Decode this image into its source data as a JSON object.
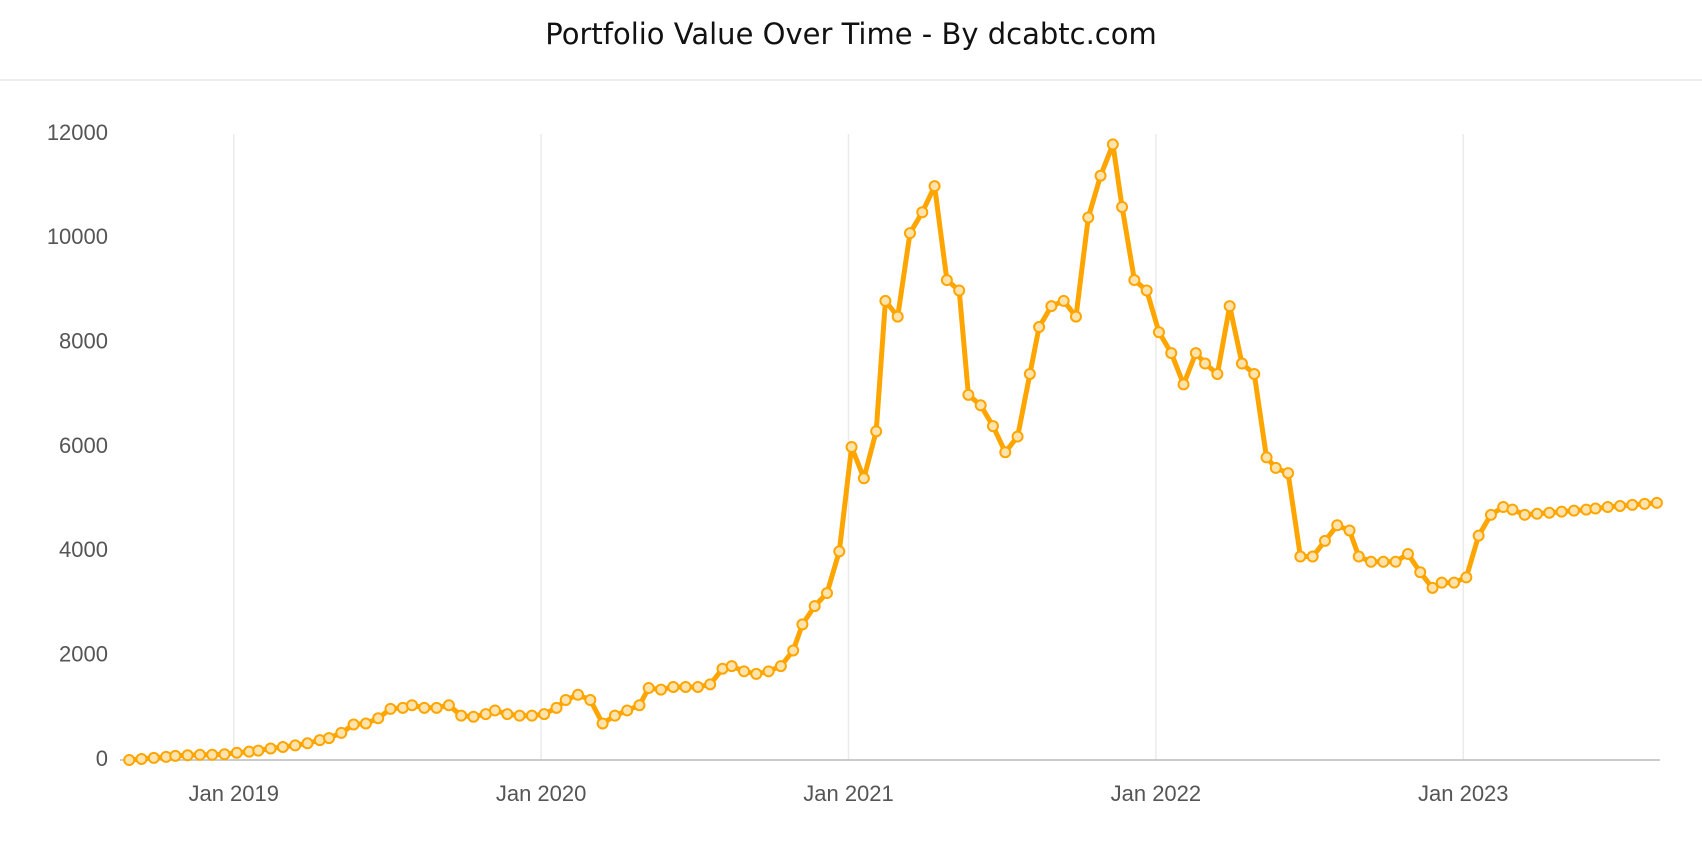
{
  "chart_data": {
    "type": "line",
    "title": "Portfolio Value Over Time - By dcabtc.com",
    "x": [
      2018.66,
      2018.7,
      2018.74,
      2018.78,
      2018.81,
      2018.85,
      2018.89,
      2018.93,
      2018.97,
      2019.01,
      2019.05,
      2019.08,
      2019.12,
      2019.16,
      2019.2,
      2019.24,
      2019.28,
      2019.31,
      2019.35,
      2019.39,
      2019.43,
      2019.47,
      2019.51,
      2019.55,
      2019.58,
      2019.62,
      2019.66,
      2019.7,
      2019.74,
      2019.78,
      2019.82,
      2019.85,
      2019.89,
      2019.93,
      2019.97,
      2020.01,
      2020.05,
      2020.08,
      2020.12,
      2020.16,
      2020.2,
      2020.24,
      2020.28,
      2020.32,
      2020.35,
      2020.39,
      2020.43,
      2020.47,
      2020.51,
      2020.55,
      2020.59,
      2020.62,
      2020.66,
      2020.7,
      2020.74,
      2020.78,
      2020.82,
      2020.85,
      2020.89,
      2020.93,
      2020.97,
      2021.01,
      2021.05,
      2021.09,
      2021.12,
      2021.16,
      2021.2,
      2021.24,
      2021.28,
      2021.32,
      2021.36,
      2021.39,
      2021.43,
      2021.47,
      2021.51,
      2021.55,
      2021.59,
      2021.62,
      2021.66,
      2021.7,
      2021.74,
      2021.78,
      2021.82,
      2021.86,
      2021.89,
      2021.93,
      2021.97,
      2022.01,
      2022.05,
      2022.09,
      2022.13,
      2022.16,
      2022.2,
      2022.24,
      2022.28,
      2022.32,
      2022.36,
      2022.39,
      2022.43,
      2022.47,
      2022.51,
      2022.55,
      2022.59,
      2022.63,
      2022.66,
      2022.7,
      2022.74,
      2022.78,
      2022.82,
      2022.86,
      2022.9,
      2022.93,
      2022.97,
      2023.01,
      2023.05,
      2023.09,
      2023.13,
      2023.16,
      2023.2,
      2023.24,
      2023.28,
      2023.32,
      2023.36,
      2023.4,
      2023.43,
      2023.47,
      2023.51,
      2023.55,
      2023.59,
      2023.63
    ],
    "series": [
      {
        "color": "#ffa500",
        "values": [
          0,
          20,
          40,
          60,
          80,
          90,
          100,
          100,
          110,
          140,
          160,
          180,
          220,
          250,
          280,
          320,
          380,
          420,
          520,
          680,
          700,
          800,
          980,
          1000,
          1050,
          1000,
          1000,
          1050,
          850,
          830,
          880,
          950,
          880,
          850,
          850,
          880,
          1000,
          1150,
          1250,
          1150,
          700,
          850,
          950,
          1050,
          1380,
          1350,
          1400,
          1400,
          1400,
          1450,
          1750,
          1800,
          1700,
          1650,
          1700,
          1800,
          2100,
          2600,
          2950,
          3200,
          4000,
          6000,
          5400,
          6300,
          8800,
          8500,
          10100,
          10500,
          11000,
          9200,
          9000,
          7000,
          6800,
          6400,
          5900,
          6200,
          7400,
          8300,
          8700,
          8800,
          8500,
          10400,
          11200,
          11800,
          10600,
          9200,
          9000,
          8200,
          7800,
          7200,
          7800,
          7600,
          7400,
          8700,
          7600,
          7400,
          5800,
          5600,
          5500,
          3900,
          3900,
          4200,
          4500,
          4400,
          3900,
          3800,
          3800,
          3800,
          3950,
          3600,
          3300,
          3400,
          3400,
          3500,
          4300,
          4700,
          4850,
          4800,
          4700,
          4720,
          4740,
          4760,
          4780,
          4800,
          4820,
          4850,
          4870,
          4890,
          4910,
          4930
        ]
      }
    ],
    "xlim": [
      2018.63,
      2023.64
    ],
    "xticks": [
      {
        "value": 2019,
        "label": "Jan 2019"
      },
      {
        "value": 2020,
        "label": "Jan 2020"
      },
      {
        "value": 2021,
        "label": "Jan 2021"
      },
      {
        "value": 2022,
        "label": "Jan 2022"
      },
      {
        "value": 2023,
        "label": "Jan 2023"
      }
    ],
    "ylim": [
      0,
      12000
    ],
    "yticks": [
      0,
      2000,
      4000,
      6000,
      8000,
      10000,
      12000
    ],
    "grid": "x"
  }
}
